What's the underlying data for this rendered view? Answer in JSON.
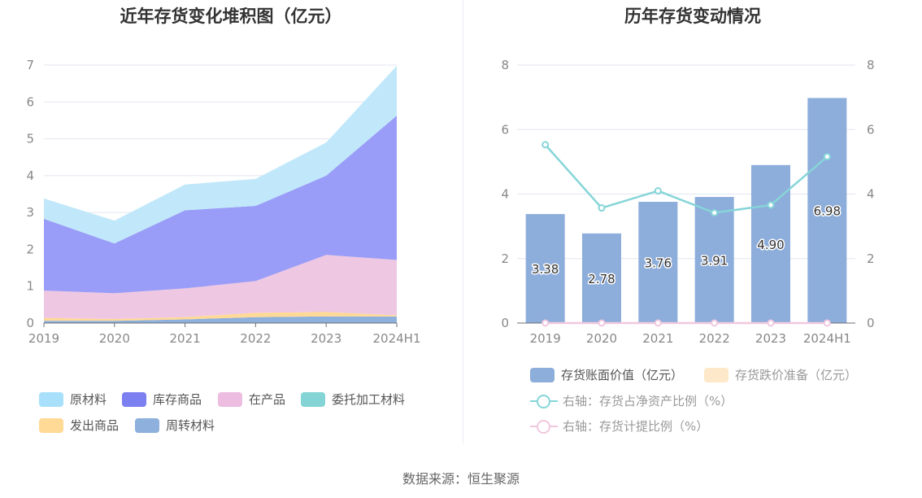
{
  "source": "数据来源：恒生聚源",
  "chart_data": [
    {
      "type": "area",
      "stacked": true,
      "title": "近年存货变化堆积图（亿元）",
      "x": [
        "2019",
        "2020",
        "2021",
        "2022",
        "2023",
        "2024H1"
      ],
      "ylim": [
        0,
        7
      ],
      "yticks": [
        0,
        1,
        2,
        3,
        4,
        5,
        6,
        7
      ],
      "grid": true,
      "legend_position": "bottom",
      "series": [
        {
          "name": "周转材料",
          "color": "#8eb0dd",
          "values": [
            0.06,
            0.06,
            0.1,
            0.16,
            0.18,
            0.18
          ]
        },
        {
          "name": "发出商品",
          "color": "#ffd996",
          "values": [
            0.08,
            0.05,
            0.06,
            0.12,
            0.12,
            0.03
          ]
        },
        {
          "name": "委托加工材料",
          "color": "#84d4d6",
          "values": [
            0.0,
            0.0,
            0.0,
            0.0,
            0.0,
            0.0
          ]
        },
        {
          "name": "在产品",
          "color": "#eec7e2",
          "values": [
            0.74,
            0.7,
            0.78,
            0.86,
            1.55,
            1.5
          ]
        },
        {
          "name": "库存商品",
          "color": "#9a9df7",
          "values": [
            1.95,
            1.35,
            2.12,
            2.04,
            2.15,
            3.92
          ]
        },
        {
          "name": "原材料",
          "color": "#c0e8fa",
          "values": [
            0.55,
            0.62,
            0.7,
            0.73,
            0.9,
            1.35
          ]
        }
      ],
      "legend_order": [
        "原材料",
        "库存商品",
        "在产品",
        "委托加工材料",
        "发出商品",
        "周转材料"
      ],
      "legend_colors": {
        "原材料": "#a8e0fb",
        "库存商品": "#7b7ff0",
        "在产品": "#ecbde0",
        "委托加工材料": "#84d4d6",
        "发出商品": "#ffd996",
        "周转材料": "#8eb0dd"
      }
    },
    {
      "type": "bar",
      "title": "历年存货变动情况",
      "categories": [
        "2019",
        "2020",
        "2021",
        "2022",
        "2023",
        "2024H1"
      ],
      "ylim": [
        0,
        8
      ],
      "yticks": [
        0,
        2,
        4,
        6,
        8
      ],
      "y2lim": [
        0,
        8
      ],
      "y2ticks": [
        0,
        2,
        4,
        6,
        8
      ],
      "grid": true,
      "legend_position": "bottom",
      "bar_series": [
        {
          "name": "存货账面价值（亿元）",
          "color": "#8daddb",
          "values": [
            3.38,
            2.78,
            3.76,
            3.91,
            4.9,
            6.98
          ],
          "labels": [
            "3.38",
            "2.78",
            "3.76",
            "3.91",
            "4.90",
            "6.98"
          ]
        },
        {
          "name": "存货跌价准备（亿元）",
          "color": "#fde9c9",
          "values": [
            0,
            0,
            0,
            0,
            0,
            0
          ]
        }
      ],
      "line_series": [
        {
          "name": "右轴：存货占净资产比例（%）",
          "color": "#86d5d8",
          "axis": "right",
          "values": [
            5.53,
            3.57,
            4.1,
            3.42,
            3.66,
            5.16
          ]
        },
        {
          "name": "右轴：存货计提比例（%）",
          "color": "#f0c8df",
          "axis": "right",
          "values": [
            0,
            0,
            0,
            0,
            0,
            0
          ]
        }
      ]
    }
  ]
}
